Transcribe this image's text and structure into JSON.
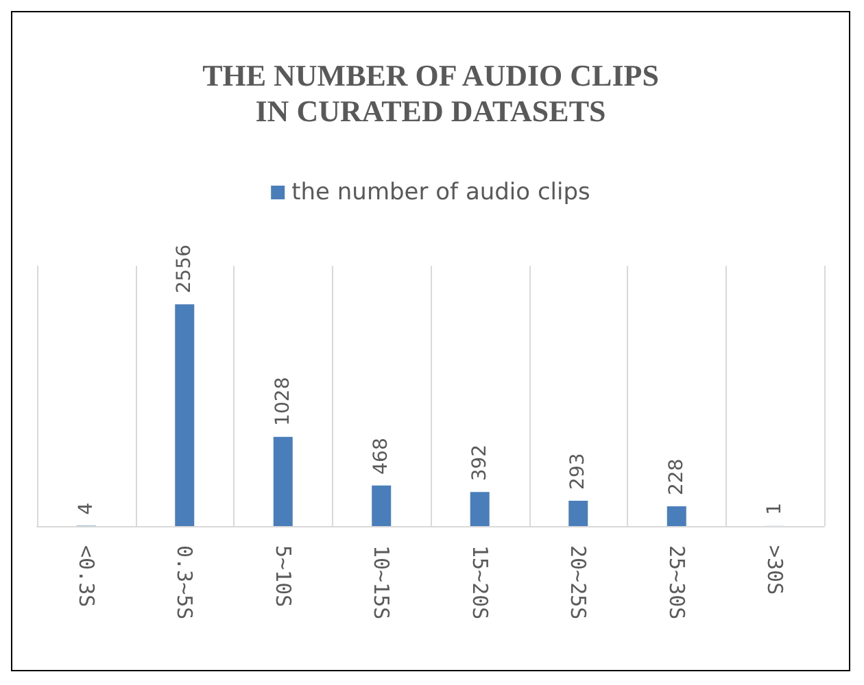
{
  "chart_data": {
    "type": "bar",
    "title": "THE NUMBER OF AUDIO CLIPS\nIN CURATED DATASETS",
    "categories": [
      "<0.3S",
      "0.3~5S",
      "5~10S",
      "10~15S",
      "15~20S",
      "20~25S",
      "25~30S",
      ">30S"
    ],
    "series": [
      {
        "name": "the number of audio clips",
        "color": "#4a7ebb",
        "values": [
          4,
          2556,
          1028,
          468,
          392,
          293,
          228,
          1
        ]
      }
    ],
    "data_labels": true,
    "grid": "x",
    "legend": "top"
  }
}
